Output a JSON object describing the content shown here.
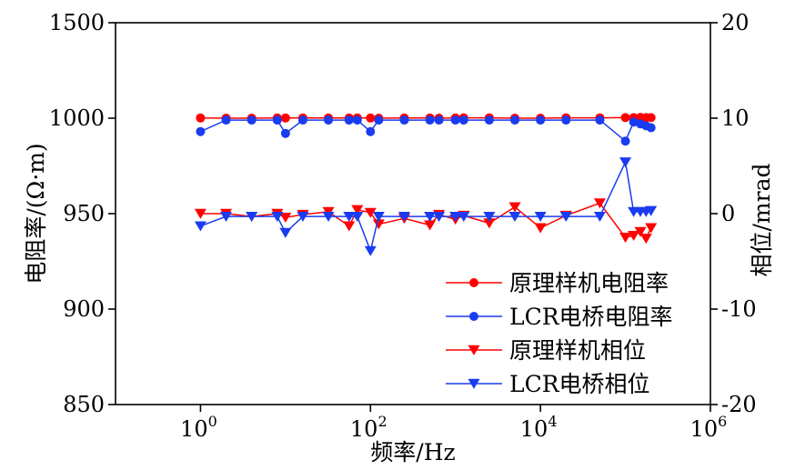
{
  "chart_data": {
    "type": "line",
    "xlabel": "频率/Hz",
    "ylabel_left": "电阻率/(Ω·m)",
    "ylabel_right": "相位/mrad",
    "x_scale": "log",
    "xlim": [
      0.1,
      1000000
    ],
    "ylim_left": [
      850,
      1500
    ],
    "ylim_right": [
      -20,
      20
    ],
    "x_ticks": [
      {
        "base": "10",
        "exp": "0",
        "value": 1
      },
      {
        "base": "10",
        "exp": "2",
        "value": 100
      },
      {
        "base": "10",
        "exp": "4",
        "value": 10000
      },
      {
        "base": "10",
        "exp": "6",
        "value": 1000000
      }
    ],
    "y_left_ticks": [
      "850",
      "900",
      "950",
      "1000",
      "1500"
    ],
    "y_left_tick_values": [
      850,
      900,
      950,
      1000,
      1500
    ],
    "y_right_ticks": [
      "-20",
      "-10",
      "0",
      "10",
      "20"
    ],
    "y_right_tick_values": [
      -20,
      -10,
      0,
      10,
      20
    ],
    "grid": false,
    "legend_position": "bottom-right",
    "series": [
      {
        "name": "原理样机电阻率",
        "axis": "left",
        "color": "#ff0000",
        "marker": "circle",
        "x": [
          1,
          2,
          4,
          8,
          10,
          16,
          32,
          56,
          70,
          100,
          125,
          250,
          500,
          640,
          1000,
          1250,
          2500,
          5000,
          10000,
          20000,
          50000,
          100000,
          125000,
          150000,
          175000,
          200000
        ],
        "y": [
          1001,
          1000,
          1000,
          1001,
          1001,
          1001,
          1001,
          1001,
          1001,
          1001,
          1000,
          1001,
          1001,
          1000,
          1001,
          1002,
          1002,
          1000,
          1000,
          1002,
          1002,
          1003,
          1003,
          1004,
          1003,
          1003
        ]
      },
      {
        "name": "LCR电桥电阻率",
        "axis": "left",
        "color": "#1a3cf0",
        "marker": "circle",
        "x": [
          1,
          2,
          4,
          8,
          10,
          16,
          32,
          56,
          70,
          100,
          125,
          250,
          500,
          640,
          1000,
          1250,
          2500,
          5000,
          10000,
          20000,
          50000,
          100000,
          125000,
          150000,
          175000,
          200000
        ],
        "y": [
          993,
          999,
          999,
          999,
          992,
          999,
          999,
          999,
          999,
          993,
          999,
          999,
          999,
          999,
          999,
          999,
          999,
          999,
          999,
          999,
          999,
          988,
          998,
          997,
          996,
          995
        ]
      },
      {
        "name": "原理样机相位",
        "axis": "right",
        "color": "#ff0000",
        "marker": "triangle-down",
        "x": [
          1,
          2,
          4,
          8,
          10,
          16,
          32,
          56,
          70,
          100,
          125,
          250,
          500,
          640,
          1000,
          1250,
          2500,
          5000,
          10000,
          20000,
          50000,
          100000,
          125000,
          150000,
          175000,
          200000
        ],
        "y": [
          0,
          0,
          -0.3,
          0,
          -0.4,
          -0.1,
          0.2,
          -1.3,
          0.4,
          0.1,
          -1.1,
          -0.5,
          -1.2,
          -0.1,
          -0.6,
          -0.2,
          -1,
          0.7,
          -1.5,
          -0.2,
          1.1,
          -2.5,
          -2.3,
          -1.9,
          -2.6,
          -1.5
        ]
      },
      {
        "name": "LCR电桥相位",
        "axis": "right",
        "color": "#1a3cf0",
        "marker": "triangle-down",
        "x": [
          1,
          2,
          4,
          8,
          10,
          16,
          32,
          56,
          70,
          100,
          125,
          250,
          500,
          640,
          1000,
          1250,
          2500,
          5000,
          10000,
          20000,
          50000,
          100000,
          125000,
          150000,
          175000,
          200000
        ],
        "y": [
          -1.3,
          -0.3,
          -0.3,
          -0.3,
          -2,
          -0.3,
          -0.3,
          -0.3,
          -0.3,
          -3.9,
          -0.3,
          -0.3,
          -0.3,
          -0.3,
          -0.3,
          -0.3,
          -0.3,
          -0.3,
          -0.3,
          -0.3,
          -0.3,
          5.4,
          0.2,
          0.2,
          0.2,
          0.3
        ]
      }
    ]
  }
}
